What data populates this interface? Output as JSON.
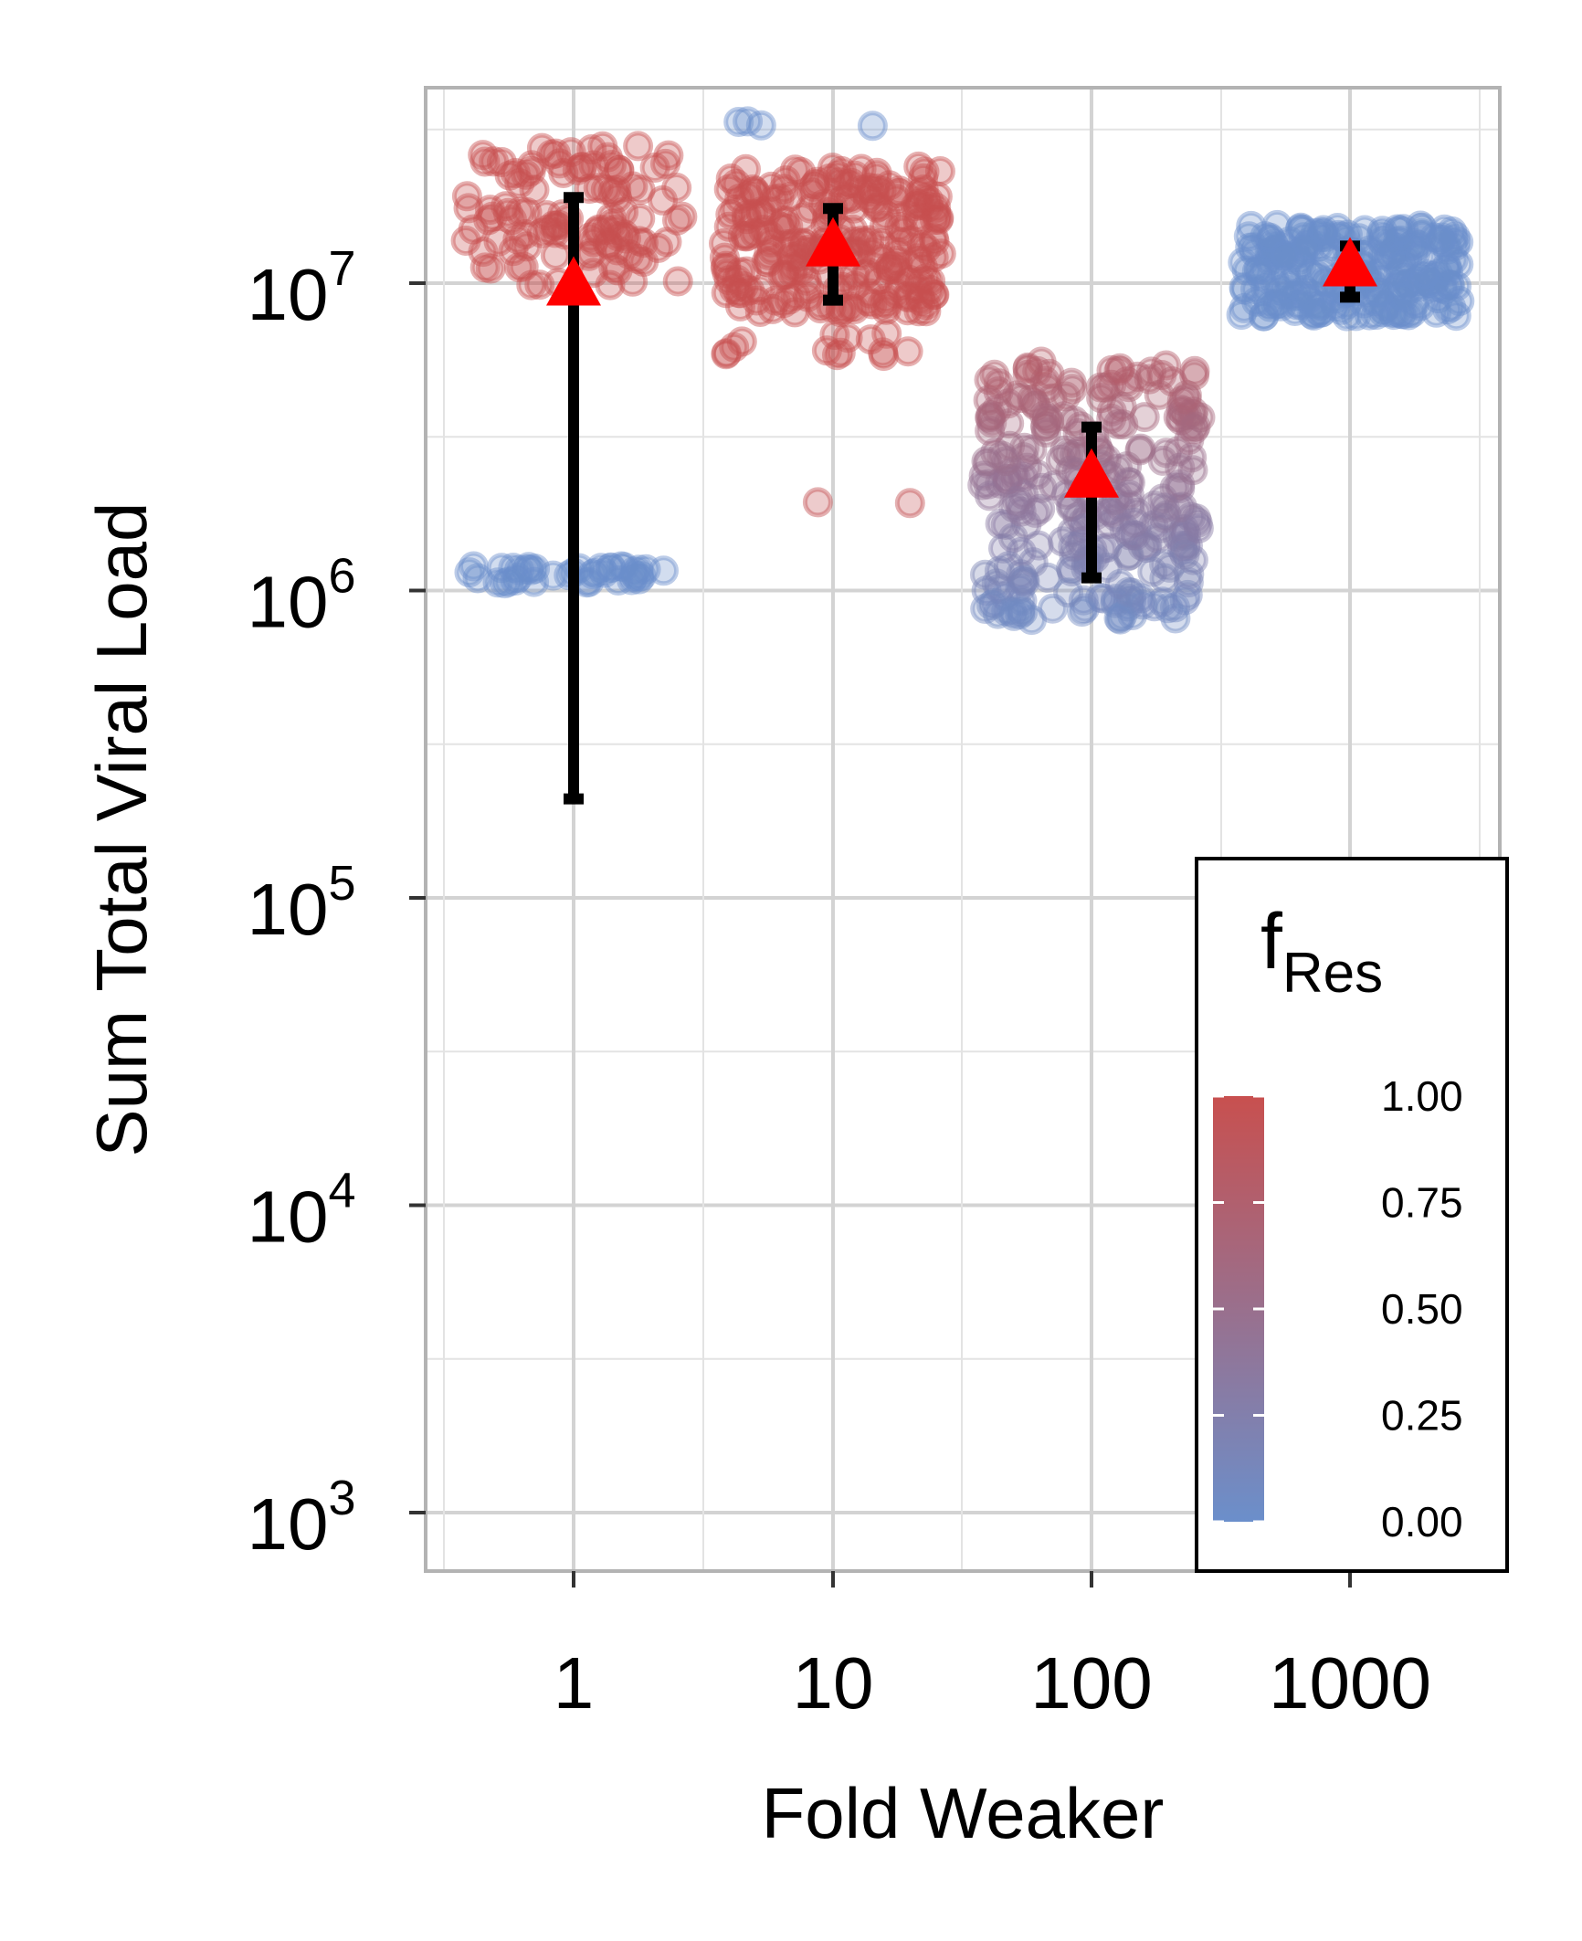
{
  "chart_data": {
    "type": "scatter",
    "xlabel": "Fold Weaker",
    "ylabel": "Sum Total Viral Load",
    "x_scale": "categorical",
    "y_scale": "log10",
    "ylim": [
      600,
      45000000
    ],
    "grid": true,
    "categories": [
      "1",
      "10",
      "100",
      "1000"
    ],
    "y_ticks": [
      {
        "value": 1000,
        "base": "10",
        "exp": "3"
      },
      {
        "value": 10000,
        "base": "10",
        "exp": "4"
      },
      {
        "value": 100000,
        "base": "10",
        "exp": "5"
      },
      {
        "value": 1000000,
        "base": "10",
        "exp": "6"
      },
      {
        "value": 10000000,
        "base": "10",
        "exp": "7"
      }
    ],
    "groups": [
      {
        "category": "1",
        "mean": 9700000,
        "err_low": 210000,
        "err_high": 19000000,
        "clusters": [
          {
            "n": 110,
            "ymin": 9800000,
            "ymax": 28000000,
            "fres_min": 1.0,
            "fres_max": 1.0
          },
          {
            "n": 40,
            "ymin": 1050000,
            "ymax": 1200000,
            "fres_min": 0.0,
            "fres_max": 0.0
          }
        ]
      },
      {
        "category": "10",
        "mean": 13000000,
        "err_low": 8800000,
        "err_high": 17500000,
        "clusters": [
          {
            "n": 230,
            "ymin": 8000000,
            "ymax": 24000000,
            "fres_min": 1.0,
            "fres_max": 1.0
          },
          {
            "n": 14,
            "ymin": 5800000,
            "ymax": 7000000,
            "fres_min": 1.0,
            "fres_max": 1.0
          },
          {
            "n": 2,
            "ymin": 1900000,
            "ymax": 1950000,
            "fres_min": 0.95,
            "fres_max": 0.95
          },
          {
            "n": 4,
            "ymin": 32000000,
            "ymax": 34000000,
            "fres_min": 0.0,
            "fres_max": 0.0
          }
        ]
      },
      {
        "category": "100",
        "mean": 2300000,
        "err_low": 1100000,
        "err_high": 3400000,
        "clusters": [
          {
            "n": 280,
            "ymin": 800000,
            "ymax": 5600000,
            "fres_min": 0.05,
            "fres_max": 0.8
          }
        ]
      },
      {
        "category": "1000",
        "mean": 11200000,
        "err_low": 9000000,
        "err_high": 13200000,
        "clusters": [
          {
            "n": 230,
            "ymin": 7800000,
            "ymax": 15500000,
            "fres_min": 0.0,
            "fres_max": 0.0
          }
        ]
      }
    ],
    "legend": {
      "title_main": "f",
      "title_sub": "Res",
      "placement": "bottom-right",
      "ticks": [
        "1.00",
        "0.75",
        "0.50",
        "0.25",
        "0.00"
      ],
      "color_low": "#6b8fcb",
      "color_high": "#c8504f"
    },
    "colors": {
      "mean_marker": "#ff0000",
      "error_bar": "#000000",
      "grid": "#d3d3d3",
      "panel_border": "#b3b3b3"
    }
  }
}
